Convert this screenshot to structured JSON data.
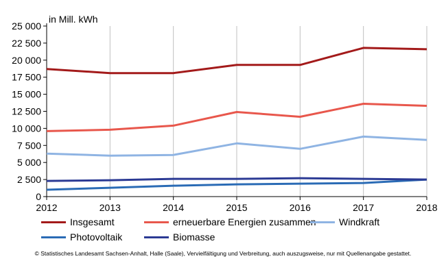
{
  "chart_data": {
    "type": "line",
    "unit_label": "in Mill. kWh",
    "x": [
      2012,
      2013,
      2014,
      2015,
      2016,
      2017,
      2018
    ],
    "x_tick_labels": [
      "2012",
      "2013",
      "2014",
      "2015",
      "2016",
      "2017",
      "2018"
    ],
    "ylim": [
      0,
      25000
    ],
    "y_ticks": [
      0,
      2500,
      5000,
      7500,
      10000,
      12500,
      15000,
      17500,
      20000,
      22500,
      25000
    ],
    "y_tick_labels": [
      "0",
      "2 500",
      "5 000",
      "7 500",
      "10 000",
      "12 500",
      "15 000",
      "17 500",
      "20 000",
      "22 500",
      "25 000"
    ],
    "grid": "vertical",
    "legend_position": "bottom",
    "series": [
      {
        "name": "Insgesamt",
        "color": "#a31a1a",
        "values": [
          18700,
          18100,
          18100,
          19300,
          19300,
          21800,
          21600
        ]
      },
      {
        "name": "erneuerbare Energien zusammen",
        "color": "#e8574c",
        "values": [
          9600,
          9800,
          10400,
          12400,
          11700,
          13600,
          13300
        ]
      },
      {
        "name": "Windkraft",
        "color": "#8fb4e3",
        "values": [
          6300,
          6000,
          6100,
          7800,
          7000,
          8800,
          8300
        ]
      },
      {
        "name": "Photovoltaik",
        "color": "#2a6bb5",
        "values": [
          1000,
          1300,
          1600,
          1800,
          1900,
          2000,
          2500
        ]
      },
      {
        "name": "Biomasse",
        "color": "#2b3a94",
        "values": [
          2300,
          2400,
          2600,
          2600,
          2700,
          2600,
          2500
        ]
      }
    ]
  },
  "footer": {
    "copyright": "© Statistisches Landesamt Sachsen-Anhalt, Halle (Saale), Vervielfältigung und Verbreitung, auch auszugsweise, nur mit Quellenangabe gestattet."
  }
}
